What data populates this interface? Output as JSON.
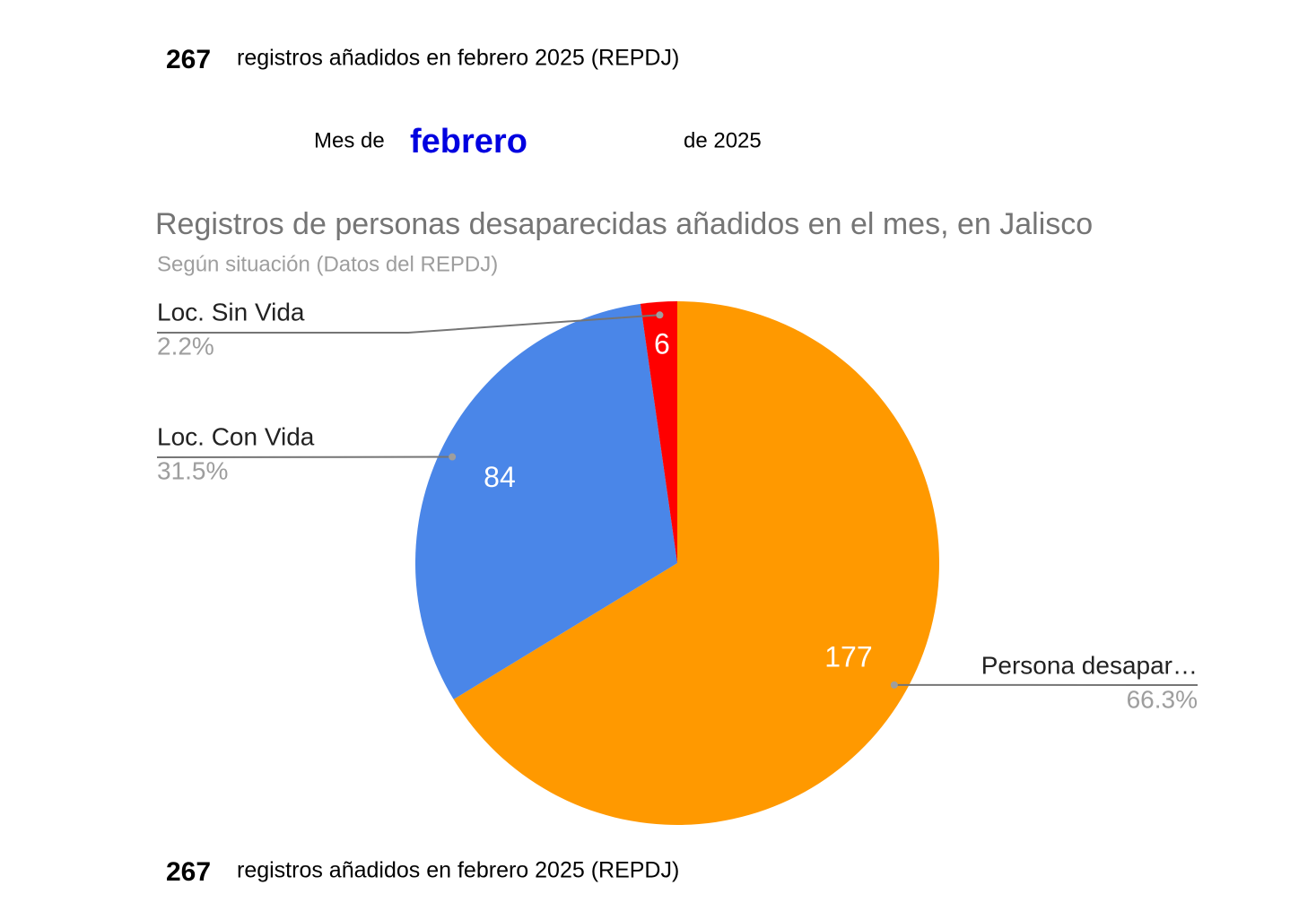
{
  "header": {
    "count": "267",
    "text": "registros añadidos en febrero 2025 (REPDJ)"
  },
  "month_line": {
    "prefix": "Mes de",
    "month": "febrero",
    "suffix": "de 2025"
  },
  "chart_data": {
    "type": "pie",
    "title": "Registros de personas desaparecidas añadidos en el mes, en Jalisco",
    "subtitle": "Según situación (Datos del REPDJ)",
    "categories": [
      "Persona desapar…",
      "Loc. Con Vida",
      "Loc. Sin Vida"
    ],
    "values": [
      177,
      84,
      6
    ],
    "percent_labels": [
      "66.3%",
      "31.5%",
      "2.2%"
    ],
    "colors": [
      "#ff9900",
      "#4a86e8",
      "#ff0000"
    ]
  },
  "footer": {
    "count": "267",
    "text": "registros añadidos en febrero 2025 (REPDJ)"
  }
}
